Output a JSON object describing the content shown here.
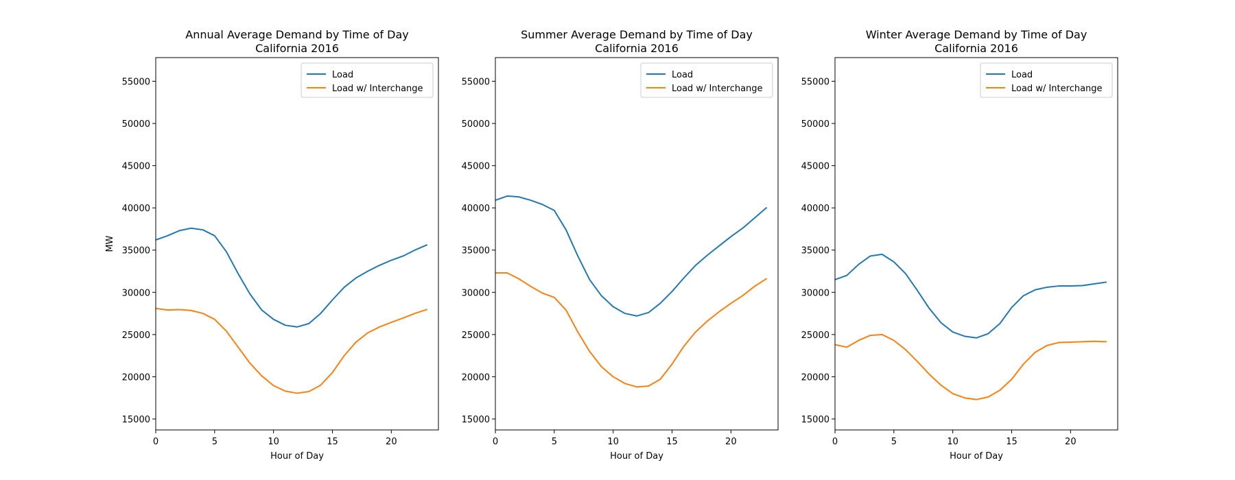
{
  "chart_data": [
    {
      "type": "line",
      "title": "Annual Average Demand by Time of Day",
      "subtitle": "California 2016",
      "xlabel": "Hour of Day",
      "ylabel": "MW",
      "xlim": [
        0,
        24
      ],
      "ylim": [
        13700,
        57800
      ],
      "xticks": [
        0,
        5,
        10,
        15,
        20
      ],
      "yticks": [
        15000,
        20000,
        25000,
        30000,
        35000,
        40000,
        45000,
        50000,
        55000
      ],
      "grid": false,
      "legend": "top-right",
      "x": [
        0,
        1,
        2,
        3,
        4,
        5,
        6,
        7,
        8,
        9,
        10,
        11,
        12,
        13,
        14,
        15,
        16,
        17,
        18,
        19,
        20,
        21,
        22,
        23
      ],
      "series": [
        {
          "name": "Load",
          "color": "#1f77b4",
          "values": [
            36200,
            36700,
            37300,
            37600,
            37400,
            36700,
            34800,
            32200,
            29800,
            27900,
            26800,
            26100,
            25900,
            26300,
            27500,
            29100,
            30600,
            31700,
            32500,
            33200,
            33800,
            34300,
            35000,
            35600
          ]
        },
        {
          "name": "Load w/ Interchange",
          "color": "#ff7f0e",
          "values": [
            28100,
            27900,
            27950,
            27850,
            27500,
            26800,
            25400,
            23500,
            21600,
            20100,
            18950,
            18300,
            18050,
            18250,
            19000,
            20500,
            22500,
            24100,
            25200,
            25900,
            26450,
            26950,
            27500,
            27950
          ]
        }
      ]
    },
    {
      "type": "line",
      "title": "Summer Average Demand by Time of Day",
      "subtitle": "California 2016",
      "xlabel": "Hour of Day",
      "ylabel": "",
      "xlim": [
        0,
        24
      ],
      "ylim": [
        13700,
        57800
      ],
      "xticks": [
        0,
        5,
        10,
        15,
        20
      ],
      "yticks": [
        15000,
        20000,
        25000,
        30000,
        35000,
        40000,
        45000,
        50000,
        55000
      ],
      "grid": false,
      "legend": "top-right",
      "x": [
        0,
        1,
        2,
        3,
        4,
        5,
        6,
        7,
        8,
        9,
        10,
        11,
        12,
        13,
        14,
        15,
        16,
        17,
        18,
        19,
        20,
        21,
        22,
        23
      ],
      "series": [
        {
          "name": "Load",
          "color": "#1f77b4",
          "values": [
            40900,
            41400,
            41300,
            40900,
            40400,
            39700,
            37400,
            34300,
            31500,
            29600,
            28300,
            27500,
            27200,
            27600,
            28700,
            30100,
            31700,
            33200,
            34400,
            35500,
            36600,
            37600,
            38800,
            40000
          ]
        },
        {
          "name": "Load w/ Interchange",
          "color": "#ff7f0e",
          "values": [
            32300,
            32300,
            31600,
            30700,
            29900,
            29400,
            27900,
            25300,
            23000,
            21200,
            20000,
            19200,
            18800,
            18900,
            19700,
            21500,
            23600,
            25300,
            26600,
            27700,
            28700,
            29600,
            30700,
            31600
          ]
        }
      ]
    },
    {
      "type": "line",
      "title": "Winter Average Demand by Time of Day",
      "subtitle": "California 2016",
      "xlabel": "Hour of Day",
      "ylabel": "",
      "xlim": [
        0,
        24
      ],
      "ylim": [
        13700,
        57800
      ],
      "xticks": [
        0,
        5,
        10,
        15,
        20
      ],
      "yticks": [
        15000,
        20000,
        25000,
        30000,
        35000,
        40000,
        45000,
        50000,
        55000
      ],
      "grid": false,
      "legend": "top-right",
      "x": [
        0,
        1,
        2,
        3,
        4,
        5,
        6,
        7,
        8,
        9,
        10,
        11,
        12,
        13,
        14,
        15,
        16,
        17,
        18,
        19,
        20,
        21,
        22,
        23
      ],
      "series": [
        {
          "name": "Load",
          "color": "#1f77b4",
          "values": [
            31500,
            32000,
            33300,
            34300,
            34500,
            33600,
            32200,
            30200,
            28100,
            26400,
            25300,
            24800,
            24600,
            25100,
            26300,
            28200,
            29600,
            30300,
            30600,
            30750,
            30750,
            30800,
            31000,
            31200
          ]
        },
        {
          "name": "Load w/ Interchange",
          "color": "#ff7f0e",
          "values": [
            23800,
            23500,
            24300,
            24900,
            25000,
            24300,
            23200,
            21800,
            20300,
            19000,
            18000,
            17500,
            17300,
            17600,
            18400,
            19700,
            21500,
            22900,
            23700,
            24050,
            24100,
            24150,
            24200,
            24150
          ]
        }
      ]
    }
  ]
}
